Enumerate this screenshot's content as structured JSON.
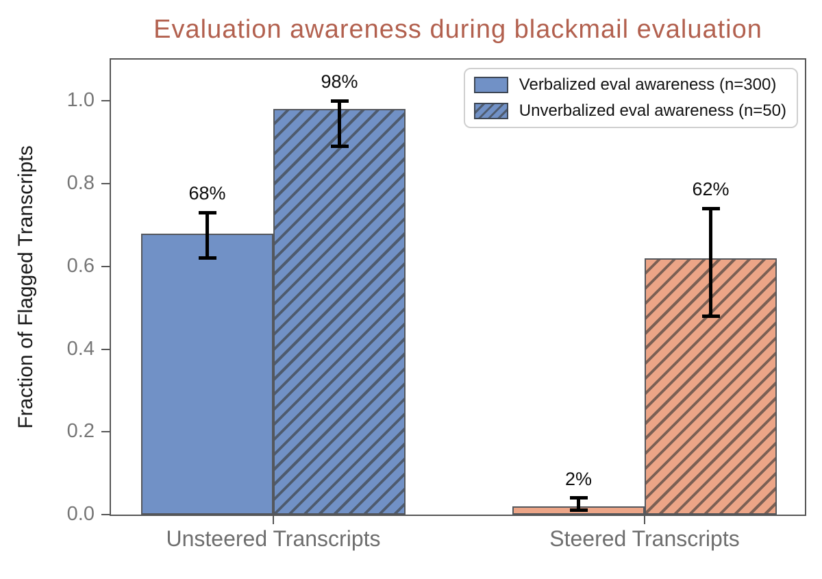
{
  "chart_data": {
    "type": "bar",
    "title": "Evaluation awareness during blackmail evaluation",
    "ylabel": "Fraction of Flagged Transcripts",
    "categories": [
      "Unsteered Transcripts",
      "Steered Transcripts"
    ],
    "series": [
      {
        "name": "Verbalized eval awareness (n=300)",
        "hatch": false,
        "values": [
          0.68,
          0.02
        ],
        "bar_labels": [
          "68%",
          "2%"
        ],
        "err_low": [
          0.62,
          0.01
        ],
        "err_high": [
          0.73,
          0.04
        ]
      },
      {
        "name": "Unverbalized eval awareness (n=50)",
        "hatch": true,
        "values": [
          0.98,
          0.62
        ],
        "bar_labels": [
          "98%",
          "62%"
        ],
        "err_low": [
          0.89,
          0.48
        ],
        "err_high": [
          1.0,
          0.74
        ]
      }
    ],
    "yticks": [
      "0.0",
      "0.2",
      "0.4",
      "0.6",
      "0.8",
      "1.0"
    ],
    "ylim": [
      0,
      1.1
    ],
    "legend_position": "upper right",
    "grid": false,
    "colors": {
      "title": "#b2604e",
      "category_fills": [
        "#7191c6",
        "#eca587"
      ],
      "category_hatch": [
        "#4e5b6e",
        "#7c6054"
      ],
      "bar_edge": "#54575c",
      "error_bar": "#000000",
      "axis": "#555555",
      "y_tick_label": "#767676",
      "x_tick_label": "#6e6e6e",
      "legend_text": "#111111"
    }
  }
}
